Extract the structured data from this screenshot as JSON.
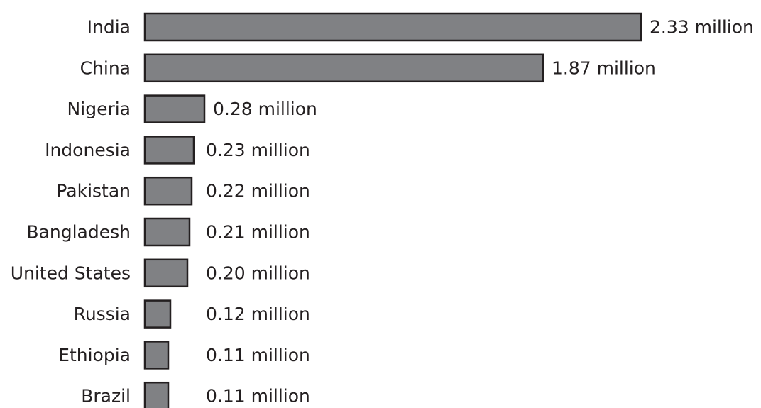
{
  "chart_data": {
    "type": "bar",
    "orientation": "horizontal",
    "categories": [
      "India",
      "China",
      "Nigeria",
      "Indonesia",
      "Pakistan",
      "Bangladesh",
      "United States",
      "Russia",
      "Ethiopia",
      "Brazil"
    ],
    "values": [
      2.33,
      1.87,
      0.28,
      0.23,
      0.22,
      0.21,
      0.2,
      0.12,
      0.11,
      0.11
    ],
    "value_labels": [
      "2.33 million",
      "1.87 million",
      "0.28 million",
      "0.23 million",
      "0.22 million",
      "0.21 million",
      "0.20 million",
      "0.12 million",
      "0.11 million",
      "0.11 million"
    ],
    "title": "",
    "xlabel": "",
    "ylabel": "",
    "grid": false,
    "legend": "none",
    "bar_color": "#808184",
    "edge_color": "#231f20"
  }
}
